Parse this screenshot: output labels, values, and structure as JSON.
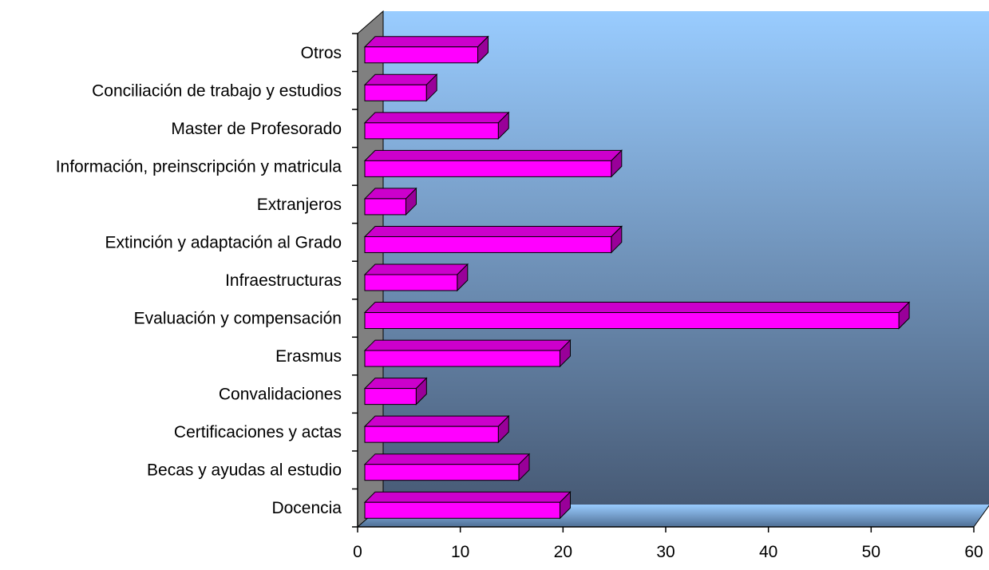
{
  "chart_data": {
    "type": "bar",
    "orientation": "horizontal",
    "style": "3d",
    "categories": [
      "Docencia",
      "Becas y ayudas al estudio",
      "Certificaciones y actas",
      "Convalidaciones",
      "Erasmus",
      "Evaluación y compensación",
      "Infraestructuras",
      "Extinción y adaptación al Grado",
      "Extranjeros",
      "Información, preinscripción y matricula",
      "Master de Profesorado",
      "Conciliación de trabajo y estudios",
      "Otros"
    ],
    "values": [
      19,
      15,
      13,
      5,
      19,
      52,
      9,
      24,
      4,
      24,
      13,
      6,
      11
    ],
    "xlim": [
      0,
      60
    ],
    "xticks": [
      "0",
      "10",
      "20",
      "30",
      "40",
      "50",
      "60"
    ],
    "grid": false,
    "legend": "none",
    "colors": {
      "bar_front": "#ff00ff",
      "bar_top": "#cc00cc",
      "bar_side": "#990099",
      "wall_top": "#99ccff",
      "wall_bottom": "#475a75",
      "side_wall": "#808080",
      "floor": "#99ccff"
    }
  }
}
